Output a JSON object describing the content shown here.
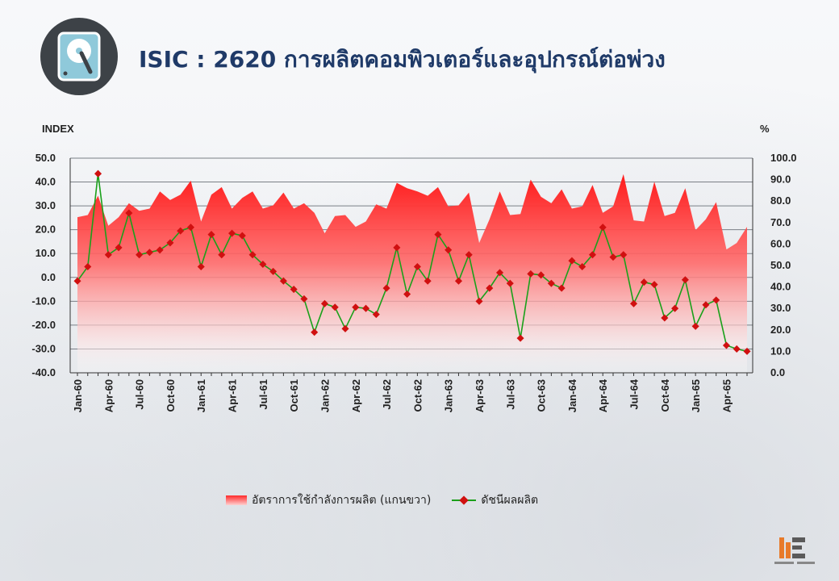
{
  "title": "ISIC : 2620 การผลิตคอมพิวเตอร์และอุปกรณ์ต่อพ่วง",
  "header_icon": "hard-disk-icon",
  "chart_data": {
    "type": "line+area",
    "left_axis_label": "INDEX",
    "right_axis_label": "%",
    "left_ylim": [
      -40,
      50
    ],
    "left_ticks": [
      "50.0",
      "40.0",
      "30.0",
      "20.0",
      "10.0",
      "0.0",
      "-10.0",
      "-20.0",
      "-30.0",
      "-40.0"
    ],
    "right_ylim": [
      0,
      100
    ],
    "right_ticks": [
      "100.0",
      "90.0",
      "80.0",
      "70.0",
      "60.0",
      "50.0",
      "40.0",
      "30.0",
      "20.0",
      "10.0",
      "0.0"
    ],
    "x_labels": [
      "Jan-60",
      "Apr-60",
      "Jul-60",
      "Oct-60",
      "Jan-61",
      "Apr-61",
      "Jul-61",
      "Oct-61",
      "Jan-62",
      "Apr-62",
      "Jul-62",
      "Oct-62",
      "Jan-63",
      "Apr-63",
      "Jul-63",
      "Oct-63",
      "Jan-64",
      "Apr-64",
      "Jul-64",
      "Oct-64",
      "Jan-65",
      "Apr-65"
    ],
    "grid": true,
    "legend_position": "bottom",
    "series": [
      {
        "name": "อัตราการใช้กำลังการผลิต (แกนขวา)",
        "type": "area",
        "axis": "right",
        "color": "#ff2020",
        "values": [
          72.5,
          73.5,
          82.5,
          68.5,
          72.5,
          79.0,
          75.5,
          76.5,
          84.5,
          80.5,
          83.0,
          89.5,
          70.5,
          83.0,
          86.5,
          76.5,
          81.5,
          84.5,
          76.5,
          78.0,
          84.0,
          76.5,
          79.0,
          74.5,
          65.0,
          73.0,
          73.5,
          68.0,
          70.5,
          78.5,
          76.5,
          88.5,
          86.0,
          84.5,
          82.5,
          86.5,
          77.5,
          78.0,
          84.0,
          60.5,
          71.5,
          84.5,
          73.5,
          74.0,
          90.0,
          82.0,
          79.0,
          85.5,
          76.5,
          77.5,
          87.5,
          74.5,
          77.5,
          92.5,
          71.0,
          70.5,
          89.0,
          73.0,
          74.5,
          86.0,
          66.5,
          71.5,
          79.5,
          57.5,
          60.5,
          68.0
        ]
      },
      {
        "name": "ดัชนีผลผลิต",
        "type": "line",
        "axis": "left",
        "color": "#1aa01a",
        "marker_color": "#d01010",
        "values": [
          -1.5,
          4.5,
          43.5,
          9.5,
          12.5,
          27.0,
          9.5,
          10.5,
          11.5,
          14.5,
          19.5,
          21.0,
          4.5,
          18.0,
          9.5,
          18.5,
          17.5,
          9.5,
          5.5,
          2.5,
          -1.5,
          -5.0,
          -9.0,
          -23.0,
          -11.0,
          -12.5,
          -21.5,
          -12.5,
          -13.0,
          -15.5,
          -4.5,
          12.5,
          -7.0,
          4.5,
          -1.5,
          18.0,
          11.5,
          -1.5,
          9.5,
          -10.0,
          -4.5,
          2.0,
          -2.5,
          -25.5,
          1.5,
          1.0,
          -2.5,
          -4.5,
          7.0,
          4.5,
          9.5,
          21.0,
          8.5,
          9.5,
          -11.0,
          -2.0,
          -3.0,
          -17.0,
          -13.0,
          -1.0,
          -20.5,
          -11.5,
          -9.5,
          -28.5,
          -30.0,
          -31.0
        ]
      }
    ]
  },
  "legend": {
    "area_label": "อัตราการใช้กำลังการผลิต (แกนขวา)",
    "line_label": "ดัชนีผลผลิต"
  },
  "colors": {
    "title": "#1f3a68",
    "area": "#ff2020",
    "line": "#1aa01a",
    "marker": "#d01010",
    "icon_bg": "#3d4247",
    "icon_fg": "#8fc9da"
  }
}
